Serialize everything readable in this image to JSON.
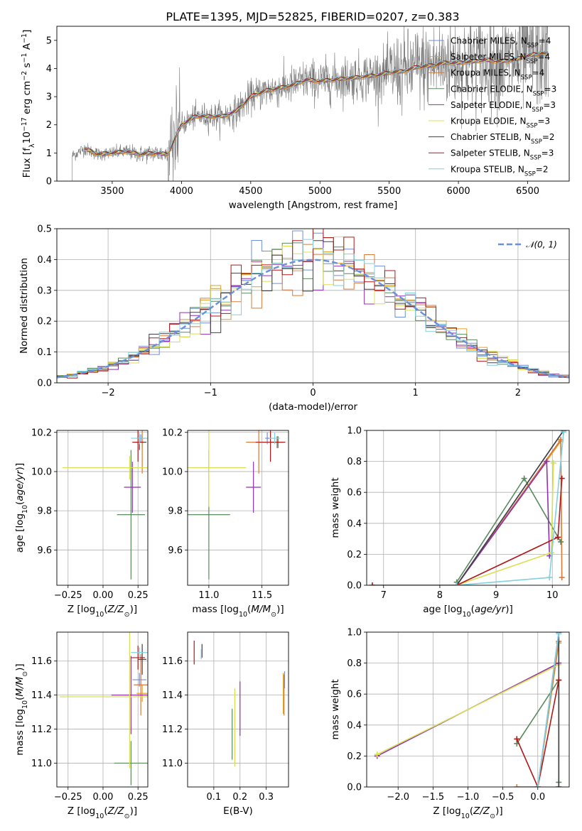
{
  "figure": {
    "title": "PLATE=1395, MJD=52825, FIBERID=0207, z=0.383"
  },
  "legend_labels": [
    {
      "name": "Chabrier MILES",
      "nssp": "4",
      "color": "#6d8fdc"
    },
    {
      "name": "Salpeter MILES",
      "nssp": "4",
      "color": "#e0a020"
    },
    {
      "name": "Kroupa MILES",
      "nssp": "4",
      "color": "#d87a3a"
    },
    {
      "name": "Chabrier ELODIE",
      "nssp": "3",
      "color": "#5a8a5e"
    },
    {
      "name": "Salpeter ELODIE",
      "nssp": "3",
      "color": "#9030b0"
    },
    {
      "name": "Kroupa ELODIE",
      "nssp": "3",
      "color": "#d8e050"
    },
    {
      "name": "Chabrier STELIB",
      "nssp": "2",
      "color": "#404040"
    },
    {
      "name": "Salpeter STELIB",
      "nssp": "3",
      "color": "#b01818"
    },
    {
      "name": "Kroupa STELIB",
      "nssp": "2",
      "color": "#80d0e0"
    }
  ],
  "chart_data": [
    {
      "id": "spectrum",
      "type": "line",
      "xlabel": "wavelength [Angstrom, rest frame]",
      "ylabel": "Flux [f_λ 10^-17 erg cm^-2 s^-1 A^-1]",
      "xlim": [
        3100,
        6800
      ],
      "ylim": [
        0,
        5.5
      ],
      "xticks": [
        3500,
        4000,
        4500,
        5000,
        5500,
        6000,
        6500
      ],
      "yticks": [
        0,
        1,
        2,
        3,
        4,
        5
      ],
      "continuum": {
        "x": [
          3210,
          3300,
          3400,
          3500,
          3600,
          3700,
          3800,
          3900,
          4000,
          4100,
          4200,
          4300,
          4400,
          4500,
          4600,
          4700,
          4800,
          4900,
          5000,
          5100,
          5200,
          5300,
          5400,
          5500,
          5600,
          5700,
          5800,
          5900,
          6000,
          6100,
          6200,
          6300,
          6400,
          6500,
          6600,
          6650
        ],
        "y": [
          0.9,
          1.15,
          0.95,
          1.0,
          1.05,
          0.95,
          1.0,
          0.95,
          2.0,
          2.3,
          2.3,
          2.3,
          2.5,
          3.0,
          3.2,
          3.3,
          3.4,
          3.6,
          3.55,
          3.6,
          3.65,
          3.7,
          3.75,
          3.85,
          3.9,
          4.05,
          4.1,
          4.2,
          4.2,
          4.25,
          4.3,
          4.25,
          4.3,
          4.45,
          4.55,
          4.5
        ]
      },
      "legend_position": "top-right"
    },
    {
      "id": "residuals",
      "type": "line",
      "xlabel": "(data-model)/error",
      "ylabel": "Normed distribution",
      "xlim": [
        -2.5,
        2.5
      ],
      "ylim": [
        0,
        0.5
      ],
      "xticks": [
        -2,
        -1,
        0,
        1,
        2
      ],
      "yticks": [
        0.0,
        0.1,
        0.2,
        0.3,
        0.4,
        0.5
      ],
      "reference_curve": "N(0,1)",
      "reference_color": "#6a8fdc",
      "legend_position": "top-right"
    },
    {
      "id": "age-vs-Z",
      "type": "scatter",
      "xlabel": "Z [log10(Z/Z⊙)]",
      "ylabel": "age [log10(age/yr)]",
      "xlim": [
        -0.33,
        0.32
      ],
      "ylim": [
        9.42,
        10.21
      ],
      "xticks": [
        -0.25,
        0.0,
        0.25
      ],
      "yticks": [
        9.6,
        9.8,
        10.0,
        10.2
      ],
      "points": [
        {
          "series": "Chabrier MILES",
          "x": 0.27,
          "y": 10.17,
          "xerr": 0.03,
          "yerr": 0.02
        },
        {
          "series": "Salpeter MILES",
          "x": 0.28,
          "y": 10.15,
          "xerr": 0.02,
          "yerr": 0.03
        },
        {
          "series": "Kroupa MILES",
          "x": 0.28,
          "y": 10.15,
          "xerr": 0.03,
          "yerr": 0.16
        },
        {
          "series": "Chabrier ELODIE",
          "x": 0.2,
          "y": 9.78,
          "xerr": 0.1,
          "yerr": 0.33
        },
        {
          "series": "Salpeter ELODIE",
          "x": 0.21,
          "y": 9.92,
          "xerr": 0.06,
          "yerr": 0.13
        },
        {
          "series": "Kroupa ELODIE",
          "x": 0.19,
          "y": 10.02,
          "xerr": 0.48,
          "yerr": 0.06
        },
        {
          "series": "Chabrier STELIB",
          "x": 0.26,
          "y": 10.15,
          "xerr": 0.05,
          "yerr": 0.04
        },
        {
          "series": "Salpeter STELIB",
          "x": 0.25,
          "y": 10.15,
          "xerr": 0.04,
          "yerr": 0.1
        },
        {
          "series": "Kroupa STELIB",
          "x": 0.26,
          "y": 10.17,
          "xerr": 0.06,
          "yerr": 0.03
        }
      ]
    },
    {
      "id": "age-vs-mass",
      "type": "scatter",
      "xlabel": "mass [log10(M/M⊙)]",
      "ylabel": "",
      "xlim": [
        10.8,
        11.75
      ],
      "ylim": [
        9.42,
        10.21
      ],
      "xticks": [
        11.0,
        11.5
      ],
      "yticks": [
        9.6,
        9.8,
        10.0,
        10.2
      ],
      "points": [
        {
          "series": "Chabrier MILES",
          "x": 11.55,
          "y": 10.17,
          "xerr": 0.02,
          "yerr": 0.03
        },
        {
          "series": "Salpeter MILES",
          "x": 11.64,
          "y": 10.15,
          "xerr": 0.03,
          "yerr": 0.03
        },
        {
          "series": "Kroupa MILES",
          "x": 11.47,
          "y": 10.15,
          "xerr": 0.12,
          "yerr": 0.16
        },
        {
          "series": "Chabrier ELODIE",
          "x": 11.0,
          "y": 9.78,
          "xerr": 0.2,
          "yerr": 0.33
        },
        {
          "series": "Salpeter ELODIE",
          "x": 11.42,
          "y": 9.92,
          "xerr": 0.07,
          "yerr": 0.13
        },
        {
          "series": "Kroupa ELODIE",
          "x": 11.0,
          "y": 10.02,
          "xerr": 0.35,
          "yerr": 0.2
        },
        {
          "series": "Chabrier STELIB",
          "x": 11.65,
          "y": 10.15,
          "xerr": 0.05,
          "yerr": 0.03
        },
        {
          "series": "Salpeter STELIB",
          "x": 11.58,
          "y": 10.15,
          "xerr": 0.14,
          "yerr": 0.1
        },
        {
          "series": "Kroupa STELIB",
          "x": 11.62,
          "y": 10.17,
          "xerr": 0.05,
          "yerr": 0.03
        }
      ]
    },
    {
      "id": "mass-weight-vs-age",
      "type": "line",
      "xlabel": "age [log10(age/yr)]",
      "ylabel": "mass weight",
      "xlim": [
        6.7,
        10.3
      ],
      "ylim": [
        0.0,
        1.0
      ],
      "xticks": [
        7,
        8,
        9,
        10
      ],
      "yticks": [
        0.0,
        0.2,
        0.4,
        0.6,
        0.8,
        1.0
      ],
      "series": [
        {
          "name": "Chabrier MILES",
          "x": [
            8.3,
            10.2
          ],
          "y": [
            0.0,
            1.0
          ]
        },
        {
          "name": "Salpeter MILES",
          "x": [
            8.3,
            10.15
          ],
          "y": [
            0.0,
            0.93
          ]
        },
        {
          "name": "Kroupa MILES",
          "x": [
            8.3,
            10.15,
            10.17
          ],
          "y": [
            0.0,
            0.94,
            0.05
          ]
        },
        {
          "name": "Chabrier ELODIE",
          "x": [
            8.3,
            9.5,
            10.15
          ],
          "y": [
            0.02,
            0.69,
            0.28
          ]
        },
        {
          "name": "Salpeter ELODIE",
          "x": [
            8.3,
            9.9,
            9.95
          ],
          "y": [
            0.0,
            0.8,
            0.19
          ]
        },
        {
          "name": "Kroupa ELODIE",
          "x": [
            8.3,
            9.98,
            10.02
          ],
          "y": [
            0.0,
            0.21,
            0.79
          ]
        },
        {
          "name": "Chabrier STELIB",
          "x": [
            8.3,
            10.2
          ],
          "y": [
            0.0,
            1.0
          ]
        },
        {
          "name": "Salpeter STELIB",
          "x": [
            6.8,
            8.3,
            10.1,
            10.17
          ],
          "y": [
            0.0,
            0.0,
            0.31,
            0.69
          ]
        },
        {
          "name": "Kroupa STELIB",
          "x": [
            8.3,
            9.95,
            10.2
          ],
          "y": [
            0.0,
            0.05,
            0.99
          ]
        }
      ]
    },
    {
      "id": "mass-vs-Z",
      "type": "scatter",
      "xlabel": "Z [log10(Z/Z⊙)]",
      "ylabel": "mass [log10(M/M⊙)]",
      "xlim": [
        -0.33,
        0.32
      ],
      "ylim": [
        10.86,
        11.77
      ],
      "xticks": [
        -0.25,
        0.0,
        0.25
      ],
      "yticks": [
        11.0,
        11.2,
        11.4,
        11.6
      ],
      "points": [
        {
          "series": "Chabrier MILES",
          "x": 0.26,
          "y": 11.49,
          "xerr": 0.05,
          "yerr": 0.04
        },
        {
          "series": "Salpeter MILES",
          "x": 0.28,
          "y": 11.41,
          "xerr": 0.04,
          "yerr": 0.05
        },
        {
          "series": "Kroupa MILES",
          "x": 0.27,
          "y": 11.46,
          "xerr": 0.05,
          "yerr": 0.18
        },
        {
          "series": "Chabrier ELODIE",
          "x": 0.2,
          "y": 11.0,
          "xerr": 0.12,
          "yerr": 0.13
        },
        {
          "series": "Salpeter ELODIE",
          "x": 0.2,
          "y": 11.4,
          "xerr": 0.14,
          "yerr": 0.23
        },
        {
          "series": "Kroupa ELODIE",
          "x": 0.19,
          "y": 11.39,
          "xerr": 0.5,
          "yerr": 0.42
        },
        {
          "series": "Chabrier STELIB",
          "x": 0.28,
          "y": 11.61,
          "xerr": 0.03,
          "yerr": 0.09
        },
        {
          "series": "Salpeter STELIB",
          "x": 0.25,
          "y": 11.62,
          "xerr": 0.05,
          "yerr": 0.07
        },
        {
          "series": "Kroupa STELIB",
          "x": 0.26,
          "y": 11.65,
          "xerr": 0.06,
          "yerr": 0.03
        }
      ]
    },
    {
      "id": "mass-vs-ebv",
      "type": "scatter",
      "xlabel": "E(B-V)",
      "ylabel": "",
      "xlim": [
        0.0,
        0.385
      ],
      "ylim": [
        10.86,
        11.77
      ],
      "xticks": [
        0.1,
        0.2,
        0.3
      ],
      "yticks": [
        11.0,
        11.2,
        11.4,
        11.6
      ],
      "points": [
        {
          "series": "Chabrier MILES",
          "x": 0.37,
          "y": 11.49,
          "yerr": 0.05
        },
        {
          "series": "Salpeter MILES",
          "x": 0.365,
          "y": 11.41,
          "yerr": 0.12
        },
        {
          "series": "Kroupa MILES",
          "x": 0.368,
          "y": 11.4,
          "yerr": 0.12
        },
        {
          "series": "Chabrier ELODIE",
          "x": 0.17,
          "y": 11.17,
          "yerr": 0.15
        },
        {
          "series": "Salpeter ELODIE",
          "x": 0.2,
          "y": 11.32,
          "yerr": 0.16
        },
        {
          "series": "Kroupa ELODIE",
          "x": 0.18,
          "y": 11.21,
          "yerr": 0.23
        },
        {
          "series": "Chabrier STELIB",
          "x": 0.055,
          "y": 11.66,
          "yerr": 0.04
        },
        {
          "series": "Salpeter STELIB",
          "x": 0.025,
          "y": 11.65,
          "yerr": 0.07
        },
        {
          "series": "Kroupa STELIB",
          "x": 0.052,
          "y": 11.64,
          "yerr": 0.03
        }
      ]
    },
    {
      "id": "mass-weight-vs-Z",
      "type": "line",
      "xlabel": "Z [log10(Z/Z⊙)]",
      "ylabel": "mass weight",
      "xlim": [
        -2.45,
        0.45
      ],
      "ylim": [
        0.0,
        1.0
      ],
      "xticks": [
        -2.0,
        -1.5,
        -1.0,
        -0.5,
        0.0
      ],
      "yticks": [
        0.0,
        0.2,
        0.4,
        0.6,
        0.8,
        1.0
      ],
      "series": [
        {
          "name": "Chabrier MILES",
          "x": [
            0.0,
            0.3
          ],
          "y": [
            0.0,
            1.0
          ]
        },
        {
          "name": "Salpeter MILES",
          "x": [
            0.0,
            0.3
          ],
          "y": [
            0.0,
            0.93
          ]
        },
        {
          "name": "Kroupa MILES",
          "x": [
            -0.3,
            0.0,
            0.3
          ],
          "y": [
            0.0,
            0.0,
            0.94
          ]
        },
        {
          "name": "Chabrier ELODIE",
          "x": [
            -0.3,
            0.3,
            0.3
          ],
          "y": [
            0.28,
            0.69,
            0.03
          ]
        },
        {
          "name": "Salpeter ELODIE",
          "x": [
            -2.3,
            0.3
          ],
          "y": [
            0.2,
            0.8
          ]
        },
        {
          "name": "Kroupa ELODIE",
          "x": [
            -2.3,
            0.3,
            0.3
          ],
          "y": [
            0.21,
            0.79,
            0.0
          ]
        },
        {
          "name": "Chabrier STELIB",
          "x": [
            0.3,
            0.3
          ],
          "y": [
            0.0,
            1.0
          ]
        },
        {
          "name": "Salpeter STELIB",
          "x": [
            -0.3,
            0.0,
            0.3
          ],
          "y": [
            0.31,
            0.0,
            0.69
          ]
        },
        {
          "name": "Kroupa STELIB",
          "x": [
            0.0,
            0.3
          ],
          "y": [
            0.0,
            0.99
          ]
        }
      ]
    }
  ]
}
